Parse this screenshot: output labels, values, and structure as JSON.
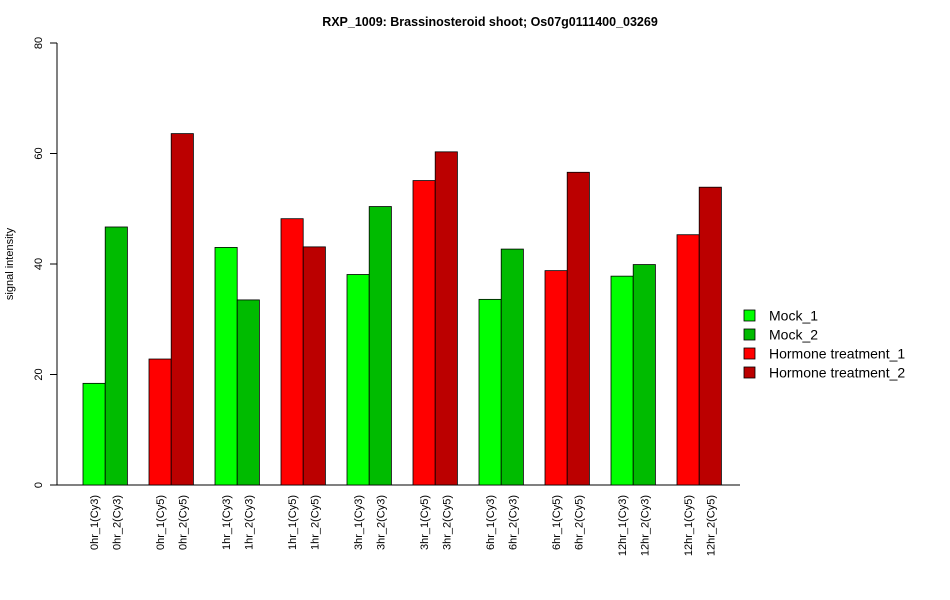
{
  "chart_data": {
    "type": "bar",
    "title": "RXP_1009: Brassinosteroid shoot; Os07g0111400_03269",
    "xlabel": "",
    "ylabel": "signal intensity",
    "ylim": [
      0,
      80
    ],
    "yticks": [
      0,
      20,
      40,
      60,
      80
    ],
    "grid": false,
    "legend_position": "right",
    "series": [
      {
        "name": "Mock_1",
        "color": "#00ff00"
      },
      {
        "name": "Mock_2",
        "color": "#00bb00"
      },
      {
        "name": "Hormone treatment_1",
        "color": "#ff0000"
      },
      {
        "name": "Hormone treatment_2",
        "color": "#bb0000"
      }
    ],
    "groups": [
      {
        "bars": [
          {
            "label": "0hr_1(Cy3)",
            "value": 18.4,
            "series": 0
          },
          {
            "label": "0hr_2(Cy3)",
            "value": 46.7,
            "series": 1
          }
        ]
      },
      {
        "bars": [
          {
            "label": "0hr_1(Cy5)",
            "value": 22.8,
            "series": 2
          },
          {
            "label": "0hr_2(Cy5)",
            "value": 63.6,
            "series": 3
          }
        ]
      },
      {
        "bars": [
          {
            "label": "1hr_1(Cy3)",
            "value": 43.0,
            "series": 0
          },
          {
            "label": "1hr_2(Cy3)",
            "value": 33.5,
            "series": 1
          }
        ]
      },
      {
        "bars": [
          {
            "label": "1hr_1(Cy5)",
            "value": 48.2,
            "series": 2
          },
          {
            "label": "1hr_2(Cy5)",
            "value": 43.1,
            "series": 3
          }
        ]
      },
      {
        "bars": [
          {
            "label": "3hr_1(Cy3)",
            "value": 38.1,
            "series": 0
          },
          {
            "label": "3hr_2(Cy3)",
            "value": 50.4,
            "series": 1
          }
        ]
      },
      {
        "bars": [
          {
            "label": "3hr_1(Cy5)",
            "value": 55.1,
            "series": 2
          },
          {
            "label": "3hr_2(Cy5)",
            "value": 60.3,
            "series": 3
          }
        ]
      },
      {
        "bars": [
          {
            "label": "6hr_1(Cy3)",
            "value": 33.6,
            "series": 0
          },
          {
            "label": "6hr_2(Cy3)",
            "value": 42.7,
            "series": 1
          }
        ]
      },
      {
        "bars": [
          {
            "label": "6hr_1(Cy5)",
            "value": 38.8,
            "series": 2
          },
          {
            "label": "6hr_2(Cy5)",
            "value": 56.6,
            "series": 3
          }
        ]
      },
      {
        "bars": [
          {
            "label": "12hr_1(Cy3)",
            "value": 37.8,
            "series": 0
          },
          {
            "label": "12hr_2(Cy3)",
            "value": 39.9,
            "series": 1
          }
        ]
      },
      {
        "bars": [
          {
            "label": "12hr_1(Cy5)",
            "value": 45.3,
            "series": 2
          },
          {
            "label": "12hr_2(Cy5)",
            "value": 53.9,
            "series": 3
          }
        ]
      }
    ]
  }
}
